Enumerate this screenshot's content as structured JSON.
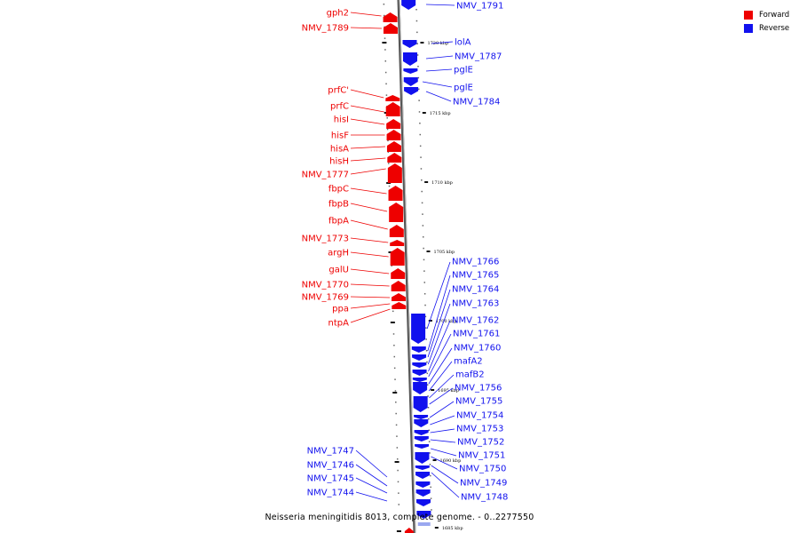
{
  "caption": "Neisseria meningitidis 8013, complete genome. - 0..2277550",
  "legend": {
    "forward_label": "Forward",
    "reverse_label": "Reverse",
    "forward_color": "#ee0000",
    "reverse_color": "#1111ee"
  },
  "scale_ticks": [
    {
      "label": "1720 kbp"
    },
    {
      "label": "1715 kbp"
    },
    {
      "label": "1710 kbp"
    },
    {
      "label": "1705 kbp"
    },
    {
      "label": "1700 kbp"
    },
    {
      "label": "1695 kbp"
    },
    {
      "label": "1690 kbp"
    },
    {
      "label": "1685 kbp"
    }
  ],
  "forward_genes": [
    "gph2",
    "NMV_1789",
    "prfC'",
    "prfC",
    "hisI",
    "hisF",
    "hisA",
    "hisH",
    "NMV_1777",
    "fbpC",
    "fbpB",
    "fbpA",
    "NMV_1773",
    "argH",
    "galU",
    "NMV_1770",
    "NMV_1769",
    "ppa",
    "ntpA"
  ],
  "reverse_genes_top": [
    "NMV_1791",
    "lolA",
    "NMV_1787",
    "pglE",
    "pglE",
    "NMV_1784"
  ],
  "reverse_genes_right": [
    "NMV_1766",
    "NMV_1765",
    "NMV_1764",
    "NMV_1763",
    "NMV_1762",
    "NMV_1761",
    "NMV_1760",
    "mafA2",
    "mafB2",
    "NMV_1756",
    "NMV_1755",
    "NMV_1754",
    "NMV_1753",
    "NMV_1752",
    "NMV_1751",
    "NMV_1750",
    "NMV_1749",
    "NMV_1748"
  ],
  "reverse_genes_left": [
    "NMV_1747",
    "NMV_1746",
    "NMV_1745",
    "NMV_1744"
  ]
}
